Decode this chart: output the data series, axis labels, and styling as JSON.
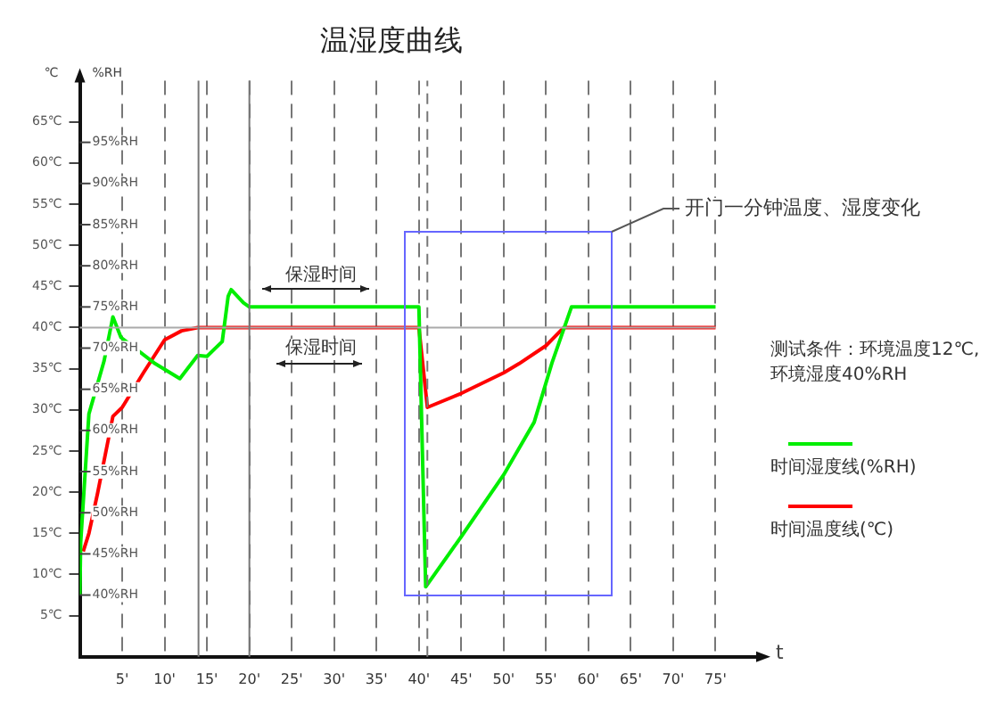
{
  "chart_data": {
    "type": "line",
    "title": "温湿度曲线",
    "xlabel": "t",
    "ylabel": "℃",
    "y2label": "%RH",
    "xlim": [
      0,
      80
    ],
    "xticks": [
      {
        "value": 5,
        "label": "5'"
      },
      {
        "value": 10,
        "label": "10'"
      },
      {
        "value": 15,
        "label": "15'"
      },
      {
        "value": 20,
        "label": "20'"
      },
      {
        "value": 25,
        "label": "25'"
      },
      {
        "value": 30,
        "label": "30'"
      },
      {
        "value": 35,
        "label": "35'"
      },
      {
        "value": 40,
        "label": "40'"
      },
      {
        "value": 45,
        "label": "45'"
      },
      {
        "value": 50,
        "label": "50'"
      },
      {
        "value": 55,
        "label": "55'"
      },
      {
        "value": 60,
        "label": "60'"
      },
      {
        "value": 65,
        "label": "65'"
      },
      {
        "value": 70,
        "label": "70'"
      },
      {
        "value": 75,
        "label": "75'"
      }
    ],
    "ylim": [
      0,
      70
    ],
    "yticks": [
      {
        "value": 5,
        "label": "5℃"
      },
      {
        "value": 10,
        "label": "10℃"
      },
      {
        "value": 15,
        "label": "15℃"
      },
      {
        "value": 20,
        "label": "20℃"
      },
      {
        "value": 25,
        "label": "25℃"
      },
      {
        "value": 30,
        "label": "30℃"
      },
      {
        "value": 35,
        "label": "35℃"
      },
      {
        "value": 40,
        "label": "40℃"
      },
      {
        "value": 45,
        "label": "45℃"
      },
      {
        "value": 50,
        "label": "50℃"
      },
      {
        "value": 55,
        "label": "55℃"
      },
      {
        "value": 60,
        "label": "60℃"
      },
      {
        "value": 65,
        "label": "65℃"
      }
    ],
    "y2lim": [
      32.5,
      102.5
    ],
    "y2ticks": [
      {
        "value": 40,
        "label": "40%RH"
      },
      {
        "value": 45,
        "label": "45%RH"
      },
      {
        "value": 50,
        "label": "50%RH"
      },
      {
        "value": 55,
        "label": "55%RH"
      },
      {
        "value": 60,
        "label": "60%RH"
      },
      {
        "value": 65,
        "label": "65%RH"
      },
      {
        "value": 70,
        "label": "70%RH"
      },
      {
        "value": 75,
        "label": "75%RH"
      },
      {
        "value": 80,
        "label": "80%RH"
      },
      {
        "value": 85,
        "label": "85%RH"
      },
      {
        "value": 90,
        "label": "90%RH"
      },
      {
        "value": 95,
        "label": "95%RH"
      }
    ],
    "grid": "x",
    "legend": "right",
    "marker": "none",
    "line_style": "solid",
    "series": [
      {
        "name": "时间湿度线(%RH)",
        "color": "#00ee00",
        "axis": "y2",
        "x": [
          0,
          0.1,
          1.07,
          2.85,
          3.9,
          4.85,
          8.9,
          11.8,
          13.9,
          15,
          16.8,
          17.5,
          17.85,
          19.3,
          20,
          40,
          40.8,
          45,
          50,
          53.6,
          55.7,
          58,
          75
        ],
        "values": [
          40,
          46.4,
          62,
          68.4,
          73.8,
          71.3,
          68.1,
          66.3,
          69.1,
          69,
          70.8,
          76.3,
          77.1,
          75.5,
          75,
          75,
          41,
          47.1,
          54.6,
          61,
          68.2,
          75,
          75
        ]
      },
      {
        "name": "时间温度线(℃)",
        "color": "#ff0000",
        "x": [
          0.4,
          1.07,
          2.1,
          3.9,
          5,
          7.5,
          10,
          12,
          13.9,
          40,
          41,
          45,
          50,
          51.8,
          55,
          57.1,
          75
        ],
        "values": [
          12.8,
          15,
          19.9,
          29.2,
          30.3,
          34.5,
          38.5,
          39.6,
          40,
          40,
          30.3,
          32,
          34.5,
          35.6,
          37.8,
          40,
          40
        ]
      }
    ],
    "ref_lines": [
      {
        "axis": "y",
        "value": 40,
        "color": "#aaaaaa",
        "line_style": "solid"
      },
      {
        "axis": "x",
        "value": 14,
        "color": "#777777",
        "line_style": "solid"
      },
      {
        "axis": "x",
        "value": 20,
        "color": "#777777",
        "line_style": "solid"
      },
      {
        "axis": "x",
        "value": 41,
        "color": "#777777",
        "line_style": "dashed"
      }
    ],
    "annotations": [
      "保湿时间",
      "保湿时间",
      "开门一分钟温度、湿度变化",
      "测试条件：环境温度12℃,\n环境湿度40%RH"
    ]
  }
}
